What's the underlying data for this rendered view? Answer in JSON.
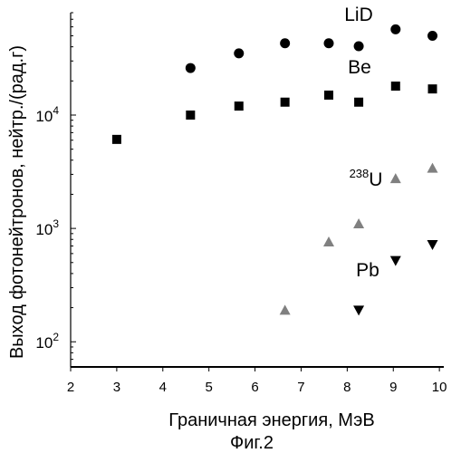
{
  "chart_data": {
    "type": "scatter",
    "xlabel": "Граничная энергия, МэВ",
    "ylabel": "Выход фотонейтронов, нейтр./(рад.г)",
    "caption": "Фиг.2",
    "y_scale": "log",
    "xlim": [
      2,
      10.4
    ],
    "ylim": [
      60,
      80000
    ],
    "x_ticks": [
      "2",
      "3",
      "4",
      "5",
      "6",
      "7",
      "8",
      "9",
      "10"
    ],
    "y_ticks": [
      {
        "base": "10",
        "exp": "2",
        "value": 100
      },
      {
        "base": "10",
        "exp": "3",
        "value": 1000
      },
      {
        "base": "10",
        "exp": "4",
        "value": 10000
      }
    ],
    "grid": false,
    "series": [
      {
        "name": "LiD",
        "label_parts": [
          "LiD"
        ],
        "marker": "circle",
        "color": "#000000",
        "x": [
          4.6,
          5.65,
          6.65,
          7.6,
          8.25,
          9.05,
          9.85
        ],
        "y": [
          26000,
          35000,
          43000,
          43000,
          40500,
          57000,
          50000
        ]
      },
      {
        "name": "Be",
        "label_parts": [
          "Be"
        ],
        "marker": "square",
        "color": "#000000",
        "x": [
          3.0,
          4.6,
          5.65,
          6.65,
          7.6,
          8.25,
          9.05,
          9.85
        ],
        "y": [
          6100,
          10000,
          12000,
          13000,
          15000,
          13000,
          18000,
          17000
        ]
      },
      {
        "name": "238U",
        "label_parts": [
          "238",
          "U"
        ],
        "marker": "triangle-up",
        "color": "#808080",
        "x": [
          6.65,
          7.6,
          8.25,
          9.05,
          9.85
        ],
        "y": [
          190,
          760,
          1100,
          2750,
          3400
        ]
      },
      {
        "name": "Pb",
        "label_parts": [
          "Pb"
        ],
        "marker": "triangle-down",
        "color": "#000000",
        "x": [
          8.25,
          9.05,
          9.85
        ],
        "y": [
          190,
          520,
          720
        ]
      }
    ]
  }
}
